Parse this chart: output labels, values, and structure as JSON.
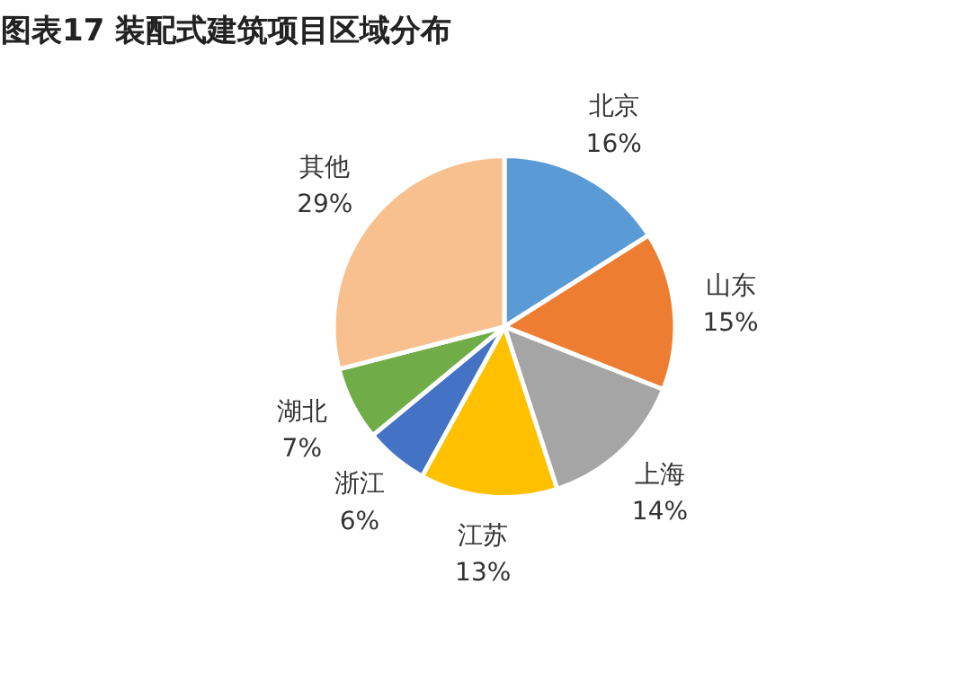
{
  "chart_data": {
    "type": "pie",
    "title": "图表17    装配式建筑项目区域分布",
    "categories": [
      "北京",
      "山东",
      "上海",
      "江苏",
      "浙江",
      "湖北",
      "其他"
    ],
    "values": [
      16,
      15,
      14,
      13,
      6,
      7,
      29
    ],
    "value_labels": [
      "16%",
      "15%",
      "14%",
      "13%",
      "6%",
      "7%",
      "29%"
    ],
    "colors": [
      "#5b9bd5",
      "#ed7d31",
      "#a5a5a5",
      "#ffc000",
      "#4472c4",
      "#70ad47",
      "#f8c08f"
    ]
  }
}
